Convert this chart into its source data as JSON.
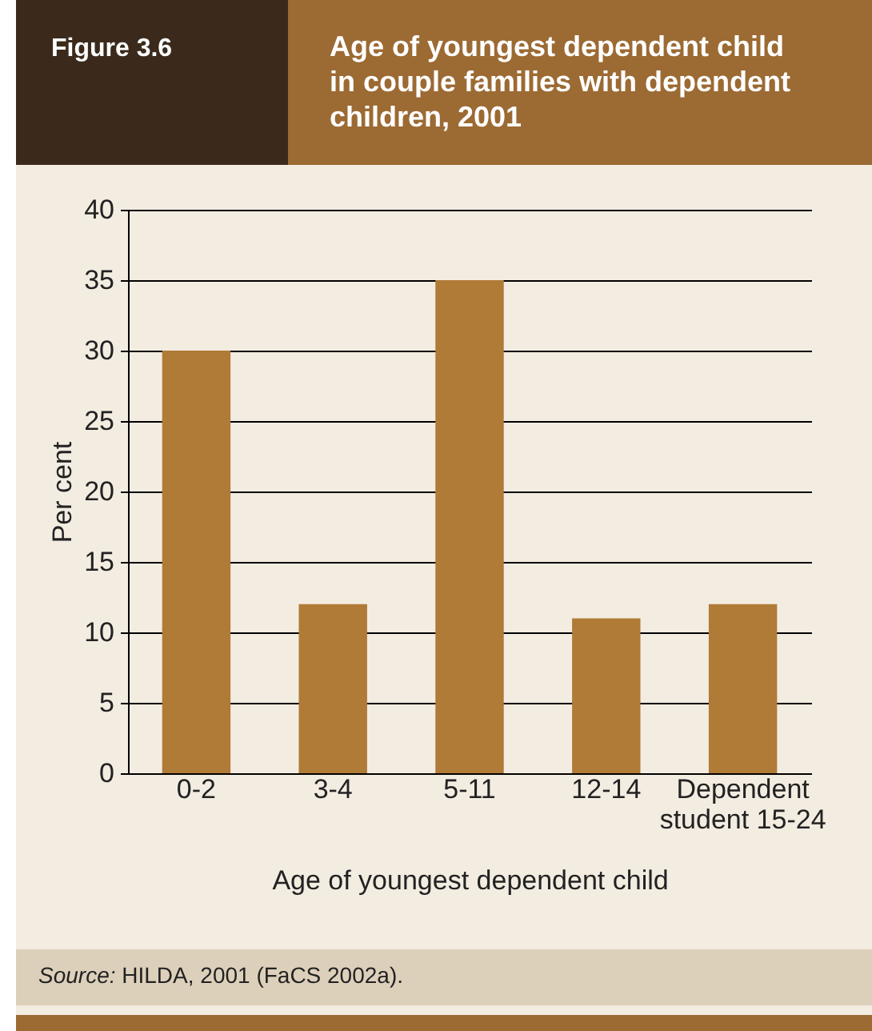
{
  "chart_data": {
    "type": "bar",
    "title": "Age of youngest dependent child in couple families with dependent children, 2001",
    "xlabel": "Age of youngest dependent child",
    "ylabel": "Per cent",
    "categories": [
      "0-2",
      "3-4",
      "5-11",
      "12-14",
      "Dependent student 15-24"
    ],
    "values": [
      30,
      12,
      35,
      11,
      12
    ],
    "color": "#b07a37",
    "ylim": [
      0,
      40
    ],
    "yticks": [
      0,
      5,
      10,
      15,
      20,
      25,
      30,
      35,
      40
    ],
    "grid": "y",
    "annotations": [
      "Figure 3.6",
      "Source: HILDA, 2001 (FaCS 2002a)."
    ]
  }
}
